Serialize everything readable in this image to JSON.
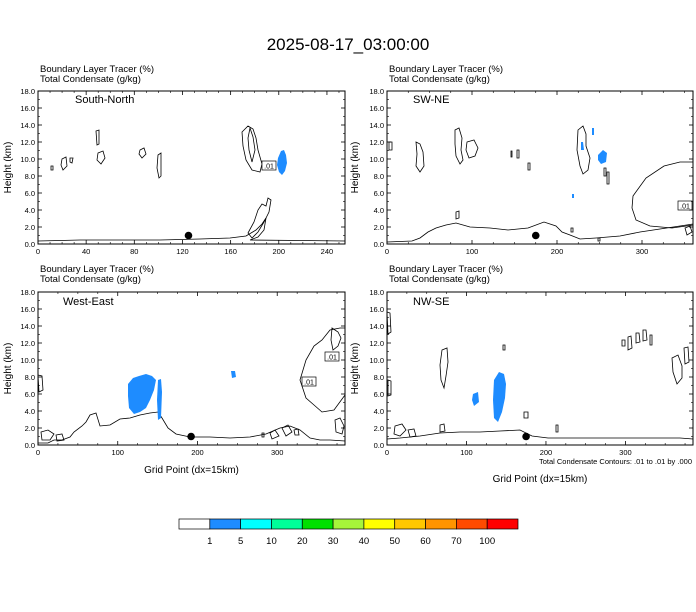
{
  "figure": {
    "title": "2025-08-17_03:00:00",
    "contour_note": "Total Condensate Contours: .01 to .01 by .000"
  },
  "colorbar": {
    "labels": [
      "1",
      "5",
      "10",
      "20",
      "30",
      "40",
      "50",
      "60",
      "70",
      "100"
    ],
    "colors": [
      "#ffffff",
      "#1e8cff",
      "#00ffff",
      "#00ff99",
      "#00e000",
      "#a6f53a",
      "#ffff00",
      "#ffc800",
      "#ff9400",
      "#ff4b00",
      "#ff0000"
    ]
  },
  "contour_labels": {
    "a": ".01",
    "b": ".01",
    "c": ".01",
    "d": ".01"
  },
  "chart_data": [
    {
      "type": "heatmap",
      "title": "South-North",
      "header_line1": "Boundary Layer Tracer   (%)",
      "header_line2": "Total Condensate   (g/kg)",
      "xlabel": "",
      "ylabel": "Height (km)",
      "xlim": [
        0,
        255
      ],
      "ylim": [
        0,
        18
      ],
      "xticks": [
        "0",
        "40",
        "80",
        "120",
        "160",
        "200",
        "240"
      ],
      "yticks": [
        "0.0",
        "2.0",
        "4.0",
        "6.0",
        "8.0",
        "10.0",
        "12.0",
        "14.0",
        "16.0",
        "18.0"
      ],
      "marker": {
        "x": 125,
        "y": 1.0
      },
      "tracer_fill": [
        {
          "x": 197,
          "y": 9.7,
          "value": 5
        }
      ]
    },
    {
      "type": "heatmap",
      "title": "SW-NE",
      "header_line1": "Boundary Layer Tracer   (%)",
      "header_line2": "Total Condensate   (g/kg)",
      "xlabel": "",
      "ylabel": "Height (km)",
      "xlim": [
        0,
        360
      ],
      "ylim": [
        0,
        18
      ],
      "xticks": [
        "0",
        "100",
        "200",
        "300"
      ],
      "yticks": [
        "0.0",
        "2.0",
        "4.0",
        "6.0",
        "8.0",
        "10.0",
        "12.0",
        "14.0",
        "16.0",
        "18.0"
      ],
      "marker": {
        "x": 175,
        "y": 1.0
      },
      "tracer_fill": [
        {
          "x": 262,
          "y": 10.5,
          "value": 5
        }
      ]
    },
    {
      "type": "heatmap",
      "title": "West-East",
      "header_line1": "Boundary Layer Tracer   (%)",
      "header_line2": "Total Condensate   (g/kg)",
      "xlabel": "Grid Point (dx=15km)",
      "ylabel": "Height (km)",
      "xlim": [
        0,
        385
      ],
      "ylim": [
        0,
        18
      ],
      "xticks": [
        "0",
        "100",
        "200",
        "300"
      ],
      "yticks": [
        "0.0",
        "2.0",
        "4.0",
        "6.0",
        "8.0",
        "10.0",
        "12.0",
        "14.0",
        "16.0",
        "18.0"
      ],
      "marker": {
        "x": 192,
        "y": 1.0
      },
      "tracer_fill": [
        {
          "x": 140,
          "y": 3.5,
          "value": 5
        }
      ]
    },
    {
      "type": "heatmap",
      "title": "NW-SE",
      "header_line1": "Boundary Layer Tracer   (%)",
      "header_line2": "Total Condensate   (g/kg)",
      "xlabel": "Grid Point (dx=15km)",
      "ylabel": "Height (km)",
      "xlim": [
        0,
        385
      ],
      "ylim": [
        0,
        18
      ],
      "xticks": [
        "0",
        "100",
        "200",
        "300"
      ],
      "yticks": [
        "0.0",
        "2.0",
        "4.0",
        "6.0",
        "8.0",
        "10.0",
        "12.0",
        "14.0",
        "16.0",
        "18.0"
      ],
      "marker": {
        "x": 175,
        "y": 1.0
      },
      "tracer_fill": [
        {
          "x": 130,
          "y": 3.5,
          "value": 5
        }
      ]
    }
  ]
}
